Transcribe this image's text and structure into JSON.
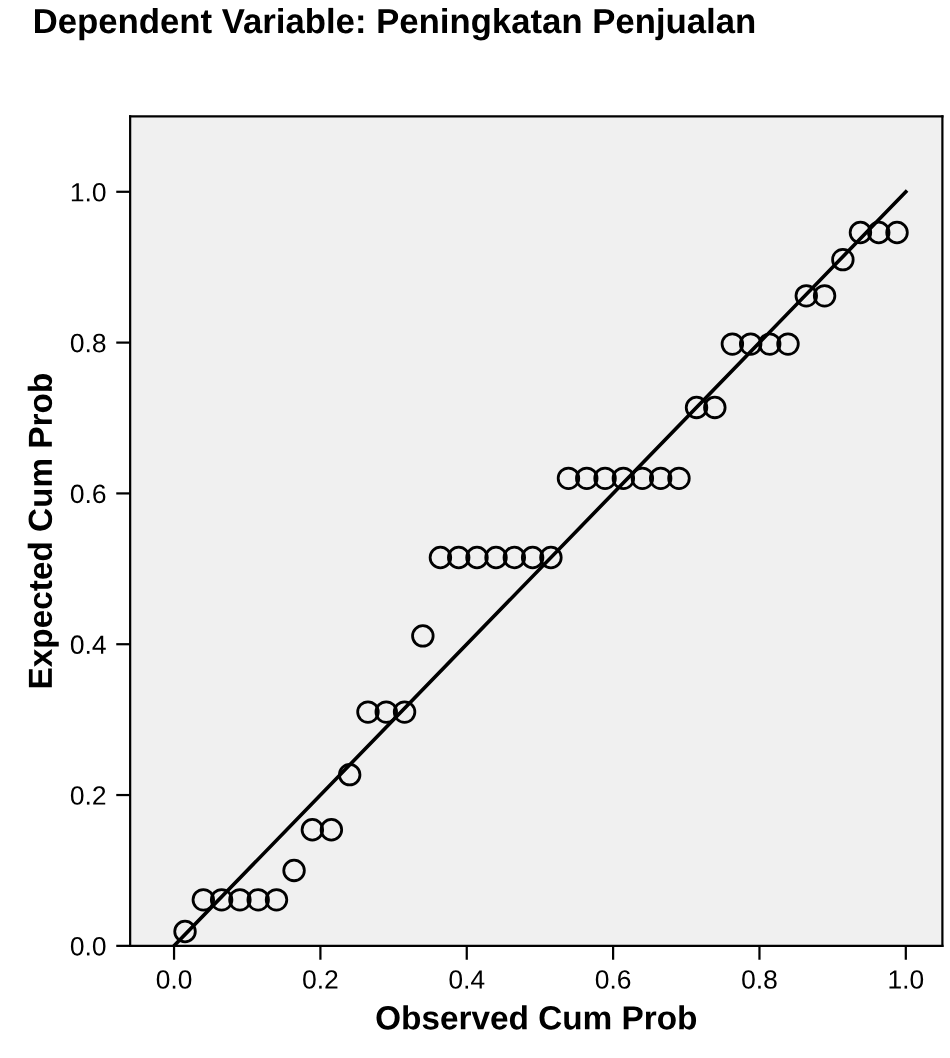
{
  "chart_data": {
    "type": "scatter",
    "title": "Dependent Variable: Peningkatan Penjualan",
    "xlabel": "Observed Cum Prob",
    "ylabel": "Expected Cum Prob",
    "series": [
      {
        "color": "#000000",
        "marker": "circle",
        "x": [
          0.015,
          0.04,
          0.065,
          0.09,
          0.115,
          0.14,
          0.164,
          0.189,
          0.215,
          0.24,
          0.265,
          0.29,
          0.315,
          0.34,
          0.364,
          0.389,
          0.414,
          0.44,
          0.465,
          0.49,
          0.515,
          0.539,
          0.564,
          0.589,
          0.614,
          0.64,
          0.665,
          0.69,
          0.714,
          0.739,
          0.763,
          0.788,
          0.814,
          0.839,
          0.864,
          0.889,
          0.914,
          0.938,
          0.963,
          0.988
        ],
        "values": [
          0.019,
          0.061,
          0.061,
          0.061,
          0.061,
          0.061,
          0.1,
          0.154,
          0.154,
          0.227,
          0.31,
          0.31,
          0.31,
          0.411,
          0.515,
          0.515,
          0.515,
          0.515,
          0.515,
          0.515,
          0.515,
          0.62,
          0.62,
          0.62,
          0.62,
          0.62,
          0.62,
          0.62,
          0.714,
          0.714,
          0.798,
          0.798,
          0.798,
          0.798,
          0.862,
          0.862,
          0.91,
          0.946,
          0.946,
          0.946
        ]
      },
      {
        "type": "line",
        "color": "#000000",
        "line_style": "solid",
        "x": [
          0,
          1
        ],
        "values": [
          0,
          1
        ]
      }
    ],
    "xlim": [
      -0.06,
      1.05
    ],
    "ylim": [
      0,
      1.1
    ],
    "xticks": [
      {
        "value": 0,
        "label": "0.0"
      },
      0.2,
      0.4,
      0.6,
      0.8,
      {
        "value": 1,
        "label": "1.0"
      }
    ],
    "yticks": [
      {
        "value": 0,
        "label": "0.0"
      },
      0.2,
      0.4,
      0.6,
      0.8,
      {
        "value": 1,
        "label": "1.0"
      }
    ],
    "grid": false,
    "legend": false
  }
}
